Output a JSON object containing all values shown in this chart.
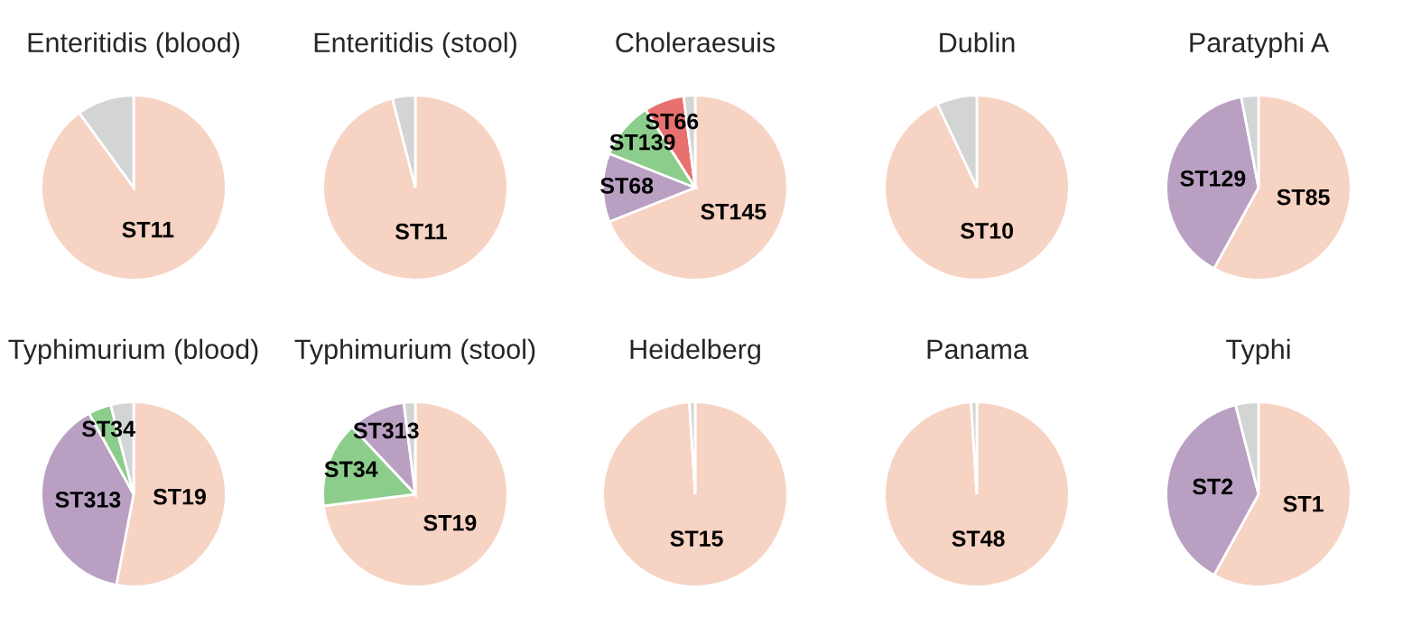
{
  "chart_data": [
    {
      "type": "pie",
      "title": "Enteritidis (blood)",
      "categories": [
        "ST11",
        null
      ],
      "values": [
        90,
        10
      ],
      "colors": [
        "#f7d3c3",
        "#d3d5d5"
      ]
    },
    {
      "type": "pie",
      "title": "Enteritidis (stool)",
      "categories": [
        "ST11",
        null
      ],
      "values": [
        96,
        4
      ],
      "colors": [
        "#f7d3c3",
        "#d3d5d5"
      ]
    },
    {
      "type": "pie",
      "title": "Choleraesuis",
      "categories": [
        "ST145",
        "ST68",
        "ST139",
        "ST66",
        null
      ],
      "values": [
        69,
        12,
        10,
        7,
        2
      ],
      "colors": [
        "#f7d3c3",
        "#b9a0c3",
        "#8ccd8c",
        "#e8706e",
        "#d3d5d5"
      ]
    },
    {
      "type": "pie",
      "title": "Dublin",
      "categories": [
        "ST10",
        null
      ],
      "values": [
        93,
        7
      ],
      "colors": [
        "#f7d3c3",
        "#d3d5d5"
      ]
    },
    {
      "type": "pie",
      "title": "Paratyphi A",
      "categories": [
        "ST85",
        "ST129",
        null
      ],
      "values": [
        58,
        39,
        3
      ],
      "colors": [
        "#f7d3c3",
        "#b9a0c3",
        "#d3d5d5"
      ]
    },
    {
      "type": "pie",
      "title": "Typhimurium (blood)",
      "categories": [
        "ST19",
        "ST313",
        "ST34",
        null
      ],
      "values": [
        53,
        39,
        4,
        4
      ],
      "colors": [
        "#f7d3c3",
        "#b9a0c3",
        "#8ccd8c",
        "#d3d5d5"
      ]
    },
    {
      "type": "pie",
      "title": "Typhimurium (stool)",
      "categories": [
        "ST19",
        "ST34",
        "ST313",
        null
      ],
      "values": [
        73,
        15,
        10,
        2
      ],
      "colors": [
        "#f7d3c3",
        "#8ccd8c",
        "#b9a0c3",
        "#d3d5d5"
      ]
    },
    {
      "type": "pie",
      "title": "Heidelberg",
      "categories": [
        "ST15",
        null
      ],
      "values": [
        99,
        1
      ],
      "colors": [
        "#f7d3c3",
        "#d3d5d5"
      ]
    },
    {
      "type": "pie",
      "title": "Panama",
      "categories": [
        "ST48",
        null
      ],
      "values": [
        99,
        1
      ],
      "colors": [
        "#f7d3c3",
        "#d3d5d5"
      ]
    },
    {
      "type": "pie",
      "title": "Typhi",
      "categories": [
        "ST1",
        "ST2",
        null
      ],
      "values": [
        58,
        38,
        4
      ],
      "colors": [
        "#f7d3c3",
        "#b9a0c3",
        "#d3d5d5"
      ]
    }
  ]
}
